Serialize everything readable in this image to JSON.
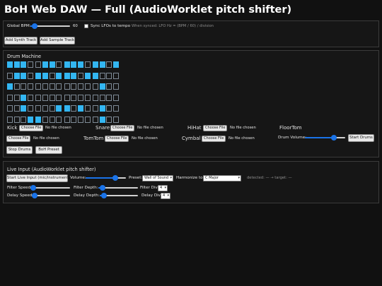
{
  "title": "BoH Web DAW — Full (AudioWorklet pitch shifter)",
  "global": {
    "bpm_label": "Global BPM:",
    "bpm_value": "60",
    "sync_label": "Sync LFOs to tempo",
    "sync_checked": false,
    "sync_hint": "When synced: LFO Hz = (BPM / 60) / division"
  },
  "tracks": {
    "add_synth": "Add Synth Track",
    "add_sample": "Add Sample Track"
  },
  "drum": {
    "heading": "Drum Machine",
    "pattern": [
      [
        1,
        1,
        1,
        0,
        0,
        1,
        1,
        0,
        1,
        1,
        1,
        0,
        1,
        1,
        0,
        1
      ],
      [
        0,
        1,
        1,
        0,
        1,
        1,
        0,
        1,
        1,
        1,
        0,
        1,
        1,
        0,
        0,
        0
      ],
      [
        1,
        0,
        0,
        0,
        0,
        0,
        0,
        0,
        0,
        0,
        0,
        0,
        0,
        1,
        0,
        0
      ],
      [
        0,
        0,
        1,
        0,
        0,
        0,
        0,
        0,
        0,
        0,
        0,
        0,
        0,
        0,
        0,
        0
      ],
      [
        0,
        0,
        1,
        0,
        0,
        0,
        0,
        1,
        1,
        0,
        1,
        0,
        0,
        1,
        0,
        0
      ],
      [
        0,
        0,
        0,
        1,
        1,
        0,
        0,
        0,
        0,
        0,
        0,
        0,
        0,
        1,
        0,
        0
      ]
    ],
    "file_button": "Choose File",
    "file_status": "No file chosen",
    "pads": {
      "kick": "Kick",
      "snare": "Snare",
      "hihat": "HiHat",
      "floortom": "FloorTom",
      "tomtom": "TomTom",
      "cymbal": "Cymbal"
    },
    "volume_label": "Drum Volume:",
    "volume_level": 0.72,
    "start": "Start Drums",
    "stop": "Stop Drums",
    "preset": "BoH Preset"
  },
  "live": {
    "heading": "Live Input (AudioWorklet pitch shifter)",
    "start": "Start Live Input (mic/instrument)",
    "volume_label": "Volume:",
    "volume_level": 0.74,
    "preset_label": "Preset:",
    "preset_value": "Wall of Sound",
    "harmonize_label": "Harmonize to:",
    "harmonize_value": "C Major",
    "status": "detected: — → target: —",
    "filter_speed_label": "Filter Speed:",
    "filter_speed_level": 0.05,
    "filter_depth_label": "Filter Depth:",
    "filter_depth_level": 0.08,
    "filter_div_label": "Filter Div:",
    "filter_div_value": "4",
    "delay_speed_label": "Delay Speed:",
    "delay_speed_level": 0.05,
    "delay_depth_label": "Delay Depth:",
    "delay_depth_level": 0.08,
    "delay_div_label": "Delay Div:",
    "delay_div_value": "4"
  },
  "colors": {
    "accent": "#1a73e8",
    "step_on": "#33b6f2",
    "background": "#111111"
  }
}
